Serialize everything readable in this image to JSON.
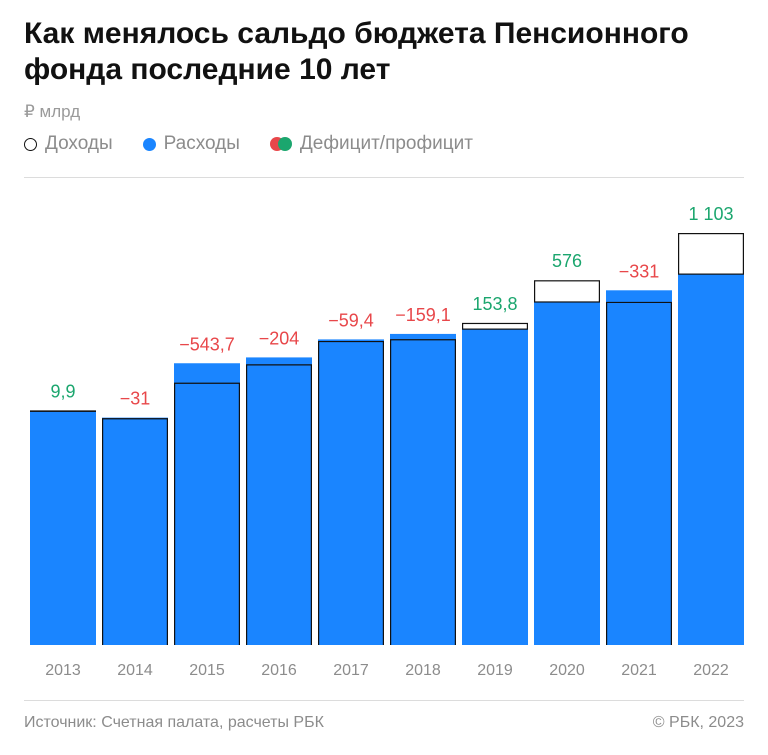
{
  "title": "Как менялось сальдо бюджета Пенсионного фонда последние 10 лет",
  "unit": "₽ млрд",
  "legend": {
    "income": "Доходы",
    "expenses": "Расходы",
    "balance": "Дефицит/профицит"
  },
  "colors": {
    "expenses": "#1a85ff",
    "income_outline": "#111111",
    "deficit": "#e8474a",
    "surplus": "#1ba66e"
  },
  "chart_data": {
    "type": "bar",
    "categories": [
      "2013",
      "2014",
      "2015",
      "2016",
      "2017",
      "2018",
      "2019",
      "2020",
      "2021",
      "2022"
    ],
    "series": [
      {
        "name": "Доходы",
        "values": [
          6387.6,
          6159.1,
          7126.6,
          7625.3,
          8260.1,
          8309.8,
          8769.5,
          9930.6,
          9325.3,
          11216.2
        ]
      },
      {
        "name": "Расходы",
        "values": [
          6377.7,
          6190.1,
          7670.3,
          7829.3,
          8319.5,
          8468.9,
          8615.7,
          9354.6,
          9656.3,
          10113.2
        ]
      },
      {
        "name": "Дефицит/профицит",
        "values": [
          9.9,
          -31,
          -543.7,
          -204,
          -59.4,
          -159.1,
          153.8,
          576,
          -331,
          1103
        ]
      }
    ],
    "balance_labels": [
      "9,9",
      "−31",
      "−543,7",
      "−204",
      "−59,4",
      "−159,1",
      "153,8",
      "576",
      "−331",
      "1 103"
    ],
    "ylim": [
      0,
      11216.2
    ],
    "grid": false,
    "legend_position": "top-left"
  },
  "footer": {
    "source": "Источник: Счетная палата, расчеты РБК",
    "copyright": "© РБК, 2023"
  }
}
